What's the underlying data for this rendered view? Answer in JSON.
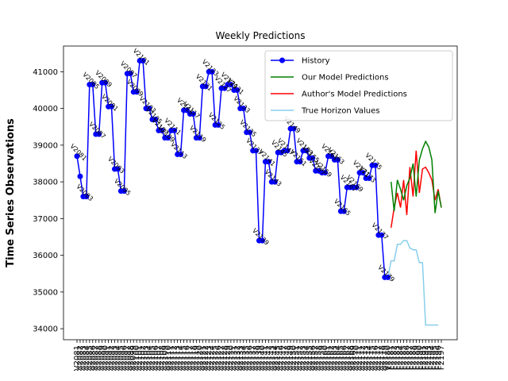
{
  "chart_data": {
    "type": "line",
    "title": "Weekly Predictions",
    "xlabel": "",
    "ylabel": "Time Series Observations",
    "ylim": [
      33700,
      41700
    ],
    "yticks": [
      34000,
      35000,
      36000,
      37000,
      38000,
      39000,
      40000,
      41000
    ],
    "grid": false,
    "legend_position": "top-right",
    "colors": {
      "history": "#0000ff",
      "ours": "#008000",
      "authors": "#ff0000",
      "truth": "#87ceeb"
    },
    "history": {
      "name": "History",
      "start_week": 2081,
      "prefix": "V",
      "values": [
        38700,
        38150,
        37600,
        37600,
        40650,
        40650,
        39300,
        39300,
        40700,
        40700,
        40050,
        40050,
        38350,
        38350,
        37750,
        37750,
        40950,
        40950,
        40450,
        40450,
        41300,
        41300,
        40000,
        40000,
        39700,
        39700,
        39400,
        39400,
        39200,
        39200,
        39400,
        39400,
        38750,
        38750,
        39950,
        39950,
        39850,
        39850,
        39200,
        39200,
        40600,
        40600,
        41000,
        41000,
        39550,
        39550,
        40550,
        40550,
        40650,
        40650,
        40500,
        40500,
        40000,
        40000,
        39350,
        39350,
        38850,
        38850,
        36400,
        36400,
        38550,
        38550,
        38000,
        38000,
        38800,
        38800,
        38850,
        38850,
        39450,
        39450,
        38550,
        38550,
        38850,
        38850,
        38650,
        38650,
        38300,
        38300,
        38250,
        38250,
        38700,
        38700,
        38600,
        38600,
        37200,
        37200,
        37850,
        37850,
        37850,
        37850,
        38250,
        38250,
        38100,
        38100,
        38450,
        38450,
        36550,
        36550,
        35400,
        35400
      ]
    },
    "forecast": {
      "start_week": 2181,
      "prefix": "F",
      "ours": {
        "name": "Our Model Predictions",
        "values": [
          38000,
          37200,
          38050,
          37800,
          37500,
          37900,
          38100,
          38500,
          37600,
          38600,
          38900,
          39100,
          38950,
          38600,
          37150,
          37750,
          37300
        ]
      },
      "authors": {
        "name": "Author's Model Predictions",
        "values": [
          36750,
          37300,
          37700,
          37300,
          38050,
          37100,
          38400,
          37600,
          38850,
          37700,
          38350,
          38400,
          38250,
          38050,
          37500,
          37800,
          37300
        ]
      },
      "truth": {
        "name": "True Horizon Values",
        "values": [
          35400,
          35850,
          35850,
          36300,
          36300,
          36400,
          36400,
          36200,
          36150,
          36150,
          35800,
          35800,
          34100,
          34100,
          34100,
          34100,
          34100
        ]
      }
    }
  }
}
